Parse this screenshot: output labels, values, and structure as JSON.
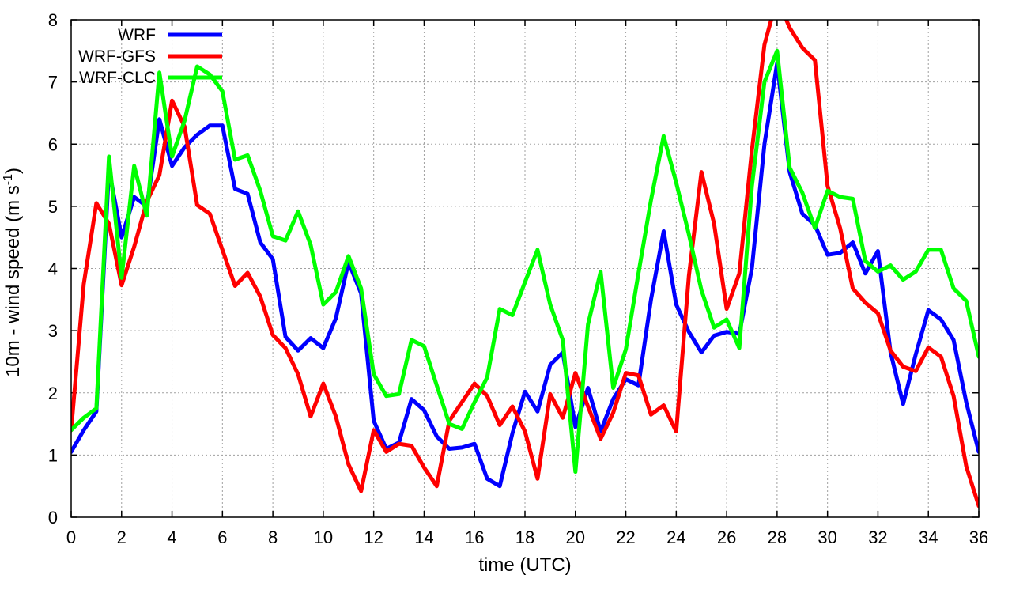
{
  "chart_data": {
    "type": "line",
    "xlabel": "time (UTC)",
    "ylabel": "10m - wind speed  (m s",
    "ylabel_sup": "-1",
    "ylabel_end": ")",
    "xlim": [
      0,
      36
    ],
    "ylim": [
      0,
      8
    ],
    "x_ticks": [
      0,
      2,
      4,
      6,
      8,
      10,
      12,
      14,
      16,
      18,
      20,
      22,
      24,
      26,
      28,
      30,
      32,
      34,
      36
    ],
    "y_ticks": [
      0,
      1,
      2,
      3,
      4,
      5,
      6,
      7,
      8
    ],
    "grid": true,
    "legend_position": "top-left",
    "x": [
      0,
      0.5,
      1,
      1.5,
      2,
      2.5,
      3,
      3.5,
      4,
      4.5,
      5,
      5.5,
      6,
      6.5,
      7,
      7.5,
      8,
      8.5,
      9,
      9.5,
      10,
      10.5,
      11,
      11.5,
      12,
      12.5,
      13,
      13.5,
      14,
      14.5,
      15,
      15.5,
      16,
      16.5,
      17,
      17.5,
      18,
      18.5,
      19,
      19.5,
      20,
      20.5,
      21,
      21.5,
      22,
      22.5,
      23,
      23.5,
      24,
      24.5,
      25,
      25.5,
      26,
      26.5,
      27,
      27.5,
      28,
      28.5,
      29,
      29.5,
      30,
      30.5,
      31,
      31.5,
      32,
      32.5,
      33,
      33.5,
      34,
      34.5,
      35,
      35.5,
      36
    ],
    "series": [
      {
        "name": "WRF",
        "color": "#0000ff",
        "values": [
          1.05,
          1.4,
          1.7,
          5.6,
          4.5,
          5.15,
          5.0,
          6.4,
          5.65,
          5.95,
          6.15,
          6.3,
          6.3,
          5.28,
          5.2,
          4.42,
          4.15,
          2.9,
          2.68,
          2.88,
          2.72,
          3.2,
          4.1,
          3.6,
          1.55,
          1.1,
          1.2,
          1.9,
          1.72,
          1.3,
          1.1,
          1.12,
          1.18,
          0.62,
          0.5,
          1.35,
          2.02,
          1.7,
          2.45,
          2.65,
          1.45,
          2.08,
          1.38,
          1.9,
          2.22,
          2.12,
          3.5,
          4.6,
          3.42,
          2.98,
          2.65,
          2.92,
          2.98,
          2.95,
          4.0,
          6.0,
          7.3,
          5.55,
          4.88,
          4.7,
          4.22,
          4.25,
          4.42,
          3.92,
          4.28,
          2.65,
          1.82,
          2.62,
          3.33,
          3.18,
          2.85,
          1.85,
          1.05
        ]
      },
      {
        "name": "WRF-GFS",
        "color": "#ff0000",
        "values": [
          1.4,
          3.75,
          5.05,
          4.72,
          3.73,
          4.35,
          5.08,
          5.5,
          6.7,
          6.28,
          5.02,
          4.88,
          4.3,
          3.72,
          3.93,
          3.55,
          2.93,
          2.72,
          2.3,
          1.62,
          2.15,
          1.62,
          0.85,
          0.42,
          1.4,
          1.05,
          1.18,
          1.15,
          0.8,
          0.5,
          1.55,
          1.85,
          2.15,
          1.95,
          1.48,
          1.78,
          1.38,
          0.62,
          1.98,
          1.6,
          2.32,
          1.78,
          1.26,
          1.68,
          2.32,
          2.28,
          1.65,
          1.8,
          1.38,
          3.88,
          5.55,
          4.72,
          3.35,
          3.92,
          5.9,
          7.6,
          8.35,
          7.87,
          7.55,
          7.35,
          5.33,
          4.65,
          3.68,
          3.45,
          3.28,
          2.68,
          2.42,
          2.35,
          2.73,
          2.58,
          1.95,
          0.82,
          0.18
        ]
      },
      {
        "name": "WRF-CLC",
        "color": "#00ff00",
        "values": [
          1.4,
          1.6,
          1.75,
          5.8,
          3.85,
          5.65,
          4.85,
          7.15,
          5.8,
          6.38,
          7.25,
          7.12,
          6.85,
          5.75,
          5.82,
          5.25,
          4.52,
          4.45,
          4.92,
          4.38,
          3.42,
          3.62,
          4.2,
          3.68,
          2.3,
          1.95,
          1.98,
          2.85,
          2.75,
          2.12,
          1.5,
          1.42,
          1.85,
          2.25,
          3.35,
          3.25,
          3.78,
          4.3,
          3.42,
          2.85,
          0.73,
          3.1,
          3.95,
          2.08,
          2.7,
          3.92,
          5.1,
          6.13,
          5.38,
          4.55,
          3.65,
          3.05,
          3.18,
          2.72,
          5.32,
          7.0,
          7.5,
          5.62,
          5.22,
          4.65,
          5.25,
          5.15,
          5.12,
          4.12,
          3.95,
          4.05,
          3.82,
          3.95,
          4.3,
          4.3,
          3.68,
          3.48,
          2.58
        ]
      }
    ]
  }
}
